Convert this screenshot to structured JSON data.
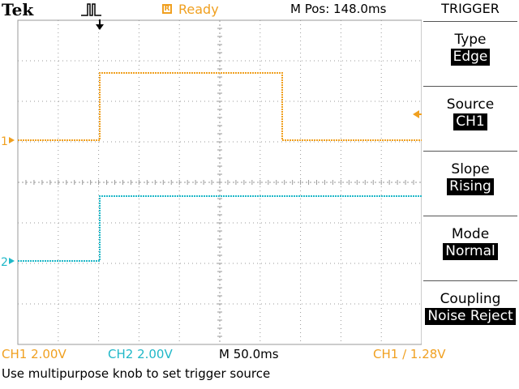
{
  "header": {
    "brand": "Tek",
    "status_box_letter": "R",
    "status": "Ready",
    "m_pos": "M Pos: 148.0ms",
    "trigger_icon": "pulse-icon"
  },
  "menu": {
    "title": "TRIGGER",
    "items": [
      {
        "label": "Type",
        "value": "Edge"
      },
      {
        "label": "Source",
        "value": "CH1"
      },
      {
        "label": "Slope",
        "value": "Rising"
      },
      {
        "label": "Mode",
        "value": "Normal"
      },
      {
        "label": "Coupling",
        "value": "Noise Reject"
      }
    ]
  },
  "channels": {
    "ch1": {
      "marker": "1",
      "scale": "CH1  2.00V",
      "color": "#f0a020"
    },
    "ch2": {
      "marker": "2",
      "scale": "CH2  2.00V",
      "color": "#20b8c8"
    }
  },
  "timebase": "M 50.0ms",
  "trigger_readout": "CH1 ∕ 1.28V",
  "hint": "Use multipurpose knob to set trigger source",
  "colors": {
    "ch1": "#f0a020",
    "ch2": "#20b8c8",
    "grid": "#9a9a9a"
  }
}
